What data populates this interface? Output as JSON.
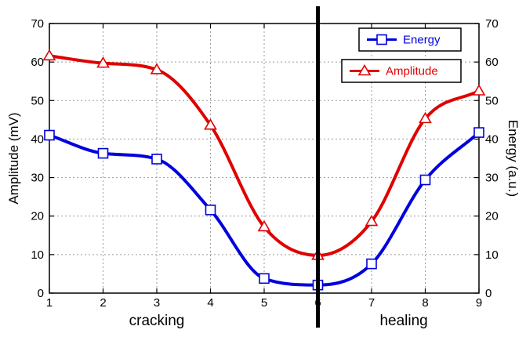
{
  "chart_data": {
    "type": "line",
    "x": [
      1,
      2,
      3,
      4,
      5,
      6,
      7,
      8,
      9
    ],
    "xlim": [
      1,
      9
    ],
    "xticks": [
      "1",
      "2",
      "3",
      "4",
      "5",
      "6",
      "7",
      "8",
      "9"
    ],
    "ylabel": "Amplitude (mV)",
    "ylim": [
      0,
      70
    ],
    "yticks": [
      "0",
      "10",
      "20",
      "30",
      "40",
      "50",
      "60",
      "70"
    ],
    "y2label": "Energy (a.u.)",
    "y2lim": [
      0,
      70
    ],
    "y2ticks": [
      "0",
      "10",
      "20",
      "30",
      "40",
      "50",
      "60",
      "70"
    ],
    "grid": true,
    "legend_position": "top-right",
    "series": [
      {
        "name": "Energy",
        "axis": "right",
        "color": "#0000dd",
        "marker": "square",
        "values": [
          41,
          36.3,
          34.8,
          21.6,
          3.8,
          2.1,
          7.6,
          29.4,
          41.7
        ]
      },
      {
        "name": "Amplitude",
        "axis": "left",
        "color": "#e00000",
        "marker": "triangle",
        "values": [
          61.6,
          59.7,
          58,
          43.6,
          17.2,
          9.8,
          18.6,
          45.3,
          52.5
        ]
      }
    ],
    "divider_x": 6,
    "region_labels": [
      "cracking",
      "healing"
    ]
  }
}
